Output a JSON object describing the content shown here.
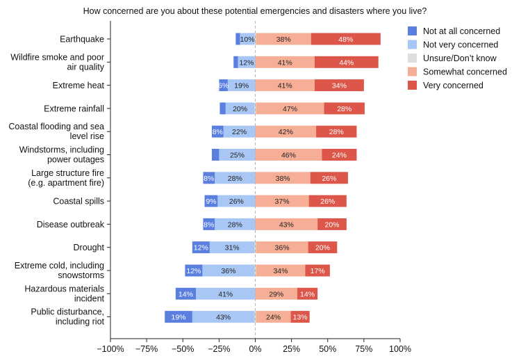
{
  "chart_data": {
    "type": "bar",
    "orientation": "horizontal",
    "stacked": "diverging",
    "title": "How concerned are you about these potential emergencies and disasters where you live?",
    "xlabel": "",
    "ylabel": "",
    "xlim": [
      -100,
      100
    ],
    "xticks": [
      -100,
      -75,
      -50,
      -25,
      0,
      25,
      50,
      75,
      100
    ],
    "xtick_labels": [
      "−100%",
      "−75%",
      "−50%",
      "−25%",
      "0%",
      "25%",
      "50%",
      "75%",
      "100%"
    ],
    "categories": [
      "Earthquake",
      "Wildfire smoke and poor air quality",
      "Extreme heat",
      "Extreme rainfall",
      "Coastal flooding and sea level rise",
      "Windstorms, including power outages",
      "Large structure fire (e.g. apartment fire)",
      "Coastal spills",
      "Disease outbreak",
      "Drought",
      "Extreme cold, including snowstorms",
      "Hazardous materials incident",
      "Public disturbance, including riot"
    ],
    "category_lines": [
      [
        "Earthquake"
      ],
      [
        "Wildfire smoke and poor",
        "air quality"
      ],
      [
        "Extreme heat"
      ],
      [
        "Extreme rainfall"
      ],
      [
        "Coastal flooding and sea",
        "level rise"
      ],
      [
        "Windstorms, including",
        "power outages"
      ],
      [
        "Large structure fire",
        "(e.g. apartment fire)"
      ],
      [
        "Coastal spills"
      ],
      [
        "Disease outbreak"
      ],
      [
        "Drought"
      ],
      [
        "Extreme cold, including",
        "snowstorms"
      ],
      [
        "Hazardous materials",
        "incident"
      ],
      [
        "Public disturbance,",
        "including riot"
      ]
    ],
    "series": [
      {
        "name": "Not at all concerned",
        "color": "#5a7fdf",
        "label_color": "#ffffff",
        "side": "negative",
        "values": [
          3,
          3,
          6,
          4,
          8,
          5,
          8,
          9,
          8,
          12,
          12,
          14,
          19
        ]
      },
      {
        "name": "Not very concerned",
        "color": "#a9c7f5",
        "label_color": "#222222",
        "side": "negative",
        "values": [
          10,
          12,
          19,
          20,
          22,
          25,
          28,
          26,
          28,
          31,
          36,
          41,
          43
        ]
      },
      {
        "name": "Unsure/Don’t know",
        "color": "#dedede",
        "label_color": "#222222",
        "side": "neutral",
        "values": [
          1,
          0,
          0,
          1,
          0,
          0,
          0,
          0,
          0,
          1,
          1,
          0,
          1
        ]
      },
      {
        "name": "Somewhat concerned",
        "color": "#f6ae97",
        "label_color": "#222222",
        "side": "positive",
        "values": [
          38,
          41,
          41,
          47,
          42,
          46,
          38,
          37,
          43,
          36,
          34,
          29,
          24
        ]
      },
      {
        "name": "Very concerned",
        "color": "#dc5749",
        "label_color": "#ffffff",
        "side": "positive",
        "values": [
          48,
          44,
          34,
          28,
          28,
          24,
          26,
          26,
          20,
          20,
          17,
          14,
          13
        ]
      }
    ],
    "data_labels": [
      [
        "",
        "10%",
        "",
        "38%",
        "48%"
      ],
      [
        "",
        "12%",
        "",
        "41%",
        "44%"
      ],
      [
        "6%",
        "19%",
        "",
        "41%",
        "34%"
      ],
      [
        "",
        "20%",
        "",
        "47%",
        "28%"
      ],
      [
        "8%",
        "22%",
        "",
        "42%",
        "28%"
      ],
      [
        "",
        "25%",
        "",
        "46%",
        "24%"
      ],
      [
        "8%",
        "28%",
        "",
        "38%",
        "26%"
      ],
      [
        "9%",
        "26%",
        "",
        "37%",
        "26%"
      ],
      [
        "8%",
        "28%",
        "",
        "43%",
        "20%"
      ],
      [
        "12%",
        "31%",
        "",
        "36%",
        "20%"
      ],
      [
        "12%",
        "36%",
        "",
        "34%",
        "17%"
      ],
      [
        "14%",
        "41%",
        "",
        "29%",
        "14%"
      ],
      [
        "19%",
        "43%",
        "",
        "24%",
        "13%"
      ]
    ],
    "legend_position": "top-right",
    "zero_line": "dashed",
    "grid": false
  }
}
